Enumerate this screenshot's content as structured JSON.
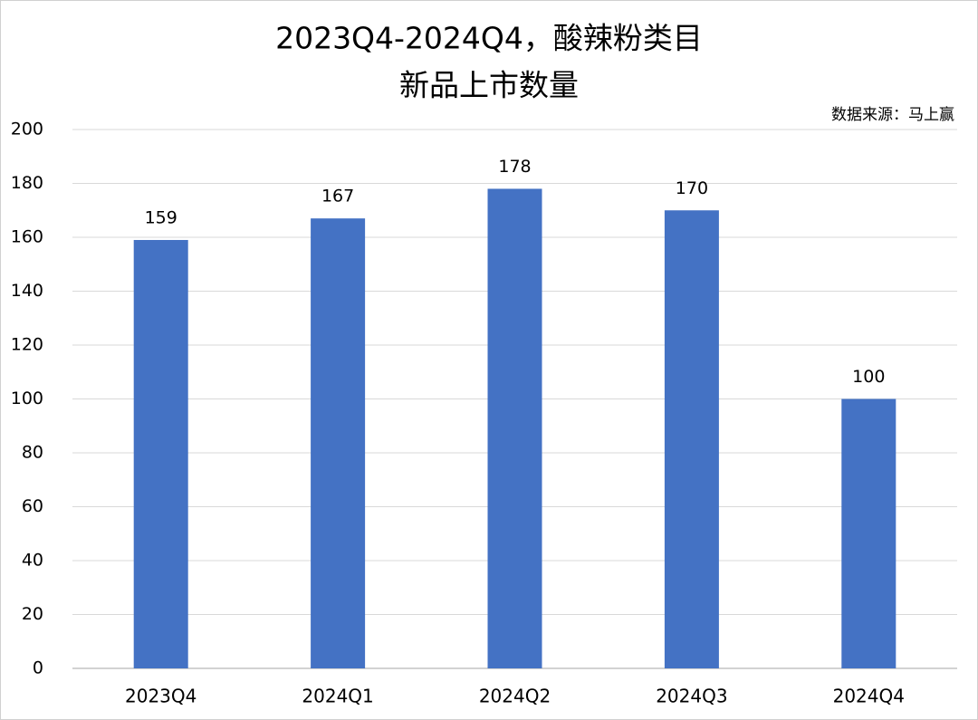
{
  "chart_data": {
    "type": "bar",
    "title": [
      "2023Q4-2024Q4，酸辣粉类目",
      "新品上市数量"
    ],
    "source": "数据来源：马上赢",
    "categories": [
      "2023Q4",
      "2024Q1",
      "2024Q2",
      "2024Q3",
      "2024Q4"
    ],
    "values": [
      159,
      167,
      178,
      170,
      100
    ],
    "color": "#4472c4",
    "ylim": [
      0,
      200
    ],
    "yticks": [
      0,
      20,
      40,
      60,
      80,
      100,
      120,
      140,
      160,
      180,
      200
    ],
    "grid": true
  }
}
